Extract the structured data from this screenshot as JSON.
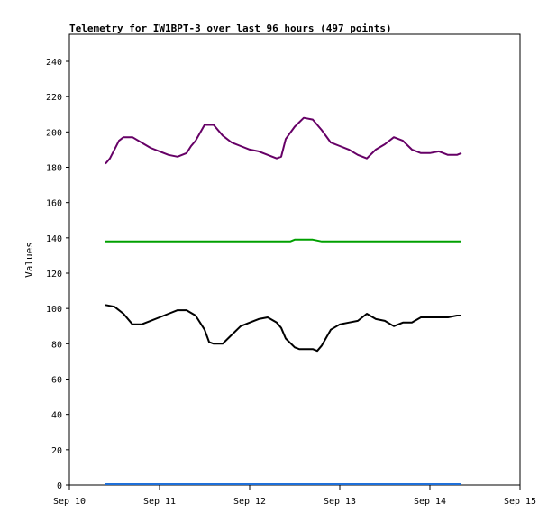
{
  "chart_data": {
    "type": "line",
    "title": "Telemetry for IW1BPT-3 over last 96 hours (497 points)",
    "xlabel": "",
    "ylabel": "Values",
    "x_ticks": [
      "Sep 10",
      "Sep 11",
      "Sep 12",
      "Sep 13",
      "Sep 14",
      "Sep 15"
    ],
    "y_ticks": [
      0,
      20,
      40,
      60,
      80,
      100,
      120,
      140,
      160,
      180,
      200,
      220,
      240
    ],
    "xlim": [
      0,
      5
    ],
    "ylim": [
      0,
      240
    ],
    "grid": false,
    "series": [
      {
        "color": "#660066",
        "x": [
          0.4,
          0.45,
          0.5,
          0.55,
          0.6,
          0.7,
          0.8,
          0.9,
          1.0,
          1.1,
          1.2,
          1.3,
          1.35,
          1.4,
          1.5,
          1.6,
          1.7,
          1.8,
          1.9,
          2.0,
          2.1,
          2.2,
          2.3,
          2.35,
          2.4,
          2.5,
          2.6,
          2.7,
          2.8,
          2.9,
          3.0,
          3.1,
          3.2,
          3.3,
          3.4,
          3.5,
          3.6,
          3.7,
          3.8,
          3.9,
          4.0,
          4.1,
          4.2,
          4.3,
          4.35
        ],
        "y": [
          182,
          185,
          190,
          195,
          197,
          197,
          194,
          191,
          189,
          187,
          186,
          188,
          192,
          195,
          204,
          204,
          198,
          194,
          192,
          190,
          189,
          187,
          185,
          186,
          196,
          203,
          208,
          207,
          201,
          194,
          192,
          190,
          187,
          185,
          190,
          193,
          197,
          195,
          190,
          188,
          188,
          189,
          187,
          187,
          188
        ]
      },
      {
        "color": "#00a000",
        "x": [
          0.4,
          2.45,
          2.5,
          2.6,
          2.7,
          2.8,
          4.35
        ],
        "y": [
          138,
          138,
          139,
          139,
          139,
          138,
          138
        ]
      },
      {
        "color": "#000000",
        "x": [
          0.4,
          0.5,
          0.6,
          0.7,
          0.8,
          0.9,
          1.0,
          1.1,
          1.2,
          1.3,
          1.4,
          1.5,
          1.55,
          1.6,
          1.7,
          1.8,
          1.9,
          2.0,
          2.1,
          2.2,
          2.3,
          2.35,
          2.4,
          2.5,
          2.55,
          2.6,
          2.7,
          2.75,
          2.8,
          2.9,
          3.0,
          3.1,
          3.2,
          3.3,
          3.4,
          3.5,
          3.6,
          3.7,
          3.8,
          3.9,
          4.0,
          4.1,
          4.2,
          4.3,
          4.35
        ],
        "y": [
          102,
          101,
          97,
          91,
          91,
          93,
          95,
          97,
          99,
          99,
          96,
          88,
          81,
          80,
          80,
          85,
          90,
          92,
          94,
          95,
          92,
          89,
          83,
          78,
          77,
          77,
          77,
          76,
          79,
          88,
          91,
          92,
          93,
          97,
          94,
          93,
          90,
          92,
          92,
          95,
          95,
          95,
          95,
          96,
          96
        ]
      },
      {
        "color": "#1e6fd9",
        "x": [
          0.4,
          4.35
        ],
        "y": [
          0.5,
          0.5
        ]
      }
    ]
  }
}
